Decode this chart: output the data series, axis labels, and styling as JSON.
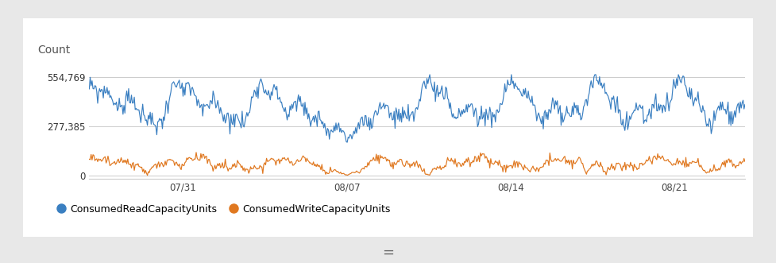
{
  "title_ylabel": "Count",
  "yticks": [
    0,
    277385,
    554769
  ],
  "ytick_labels": [
    "0",
    "277,385",
    "554,769"
  ],
  "ylim": [
    -20000,
    650000
  ],
  "xtick_labels": [
    "07/31",
    "08/07",
    "08/14",
    "08/21"
  ],
  "blue_color": "#3a7fc1",
  "orange_color": "#e07820",
  "outer_bg": "#e8e8e8",
  "panel_bg": "#ffffff",
  "legend_blue": "ConsumedReadCapacityUnits",
  "legend_orange": "ConsumedWriteCapacityUnits",
  "n_points": 700,
  "footer_text": "=",
  "grid_color": "#cccccc"
}
